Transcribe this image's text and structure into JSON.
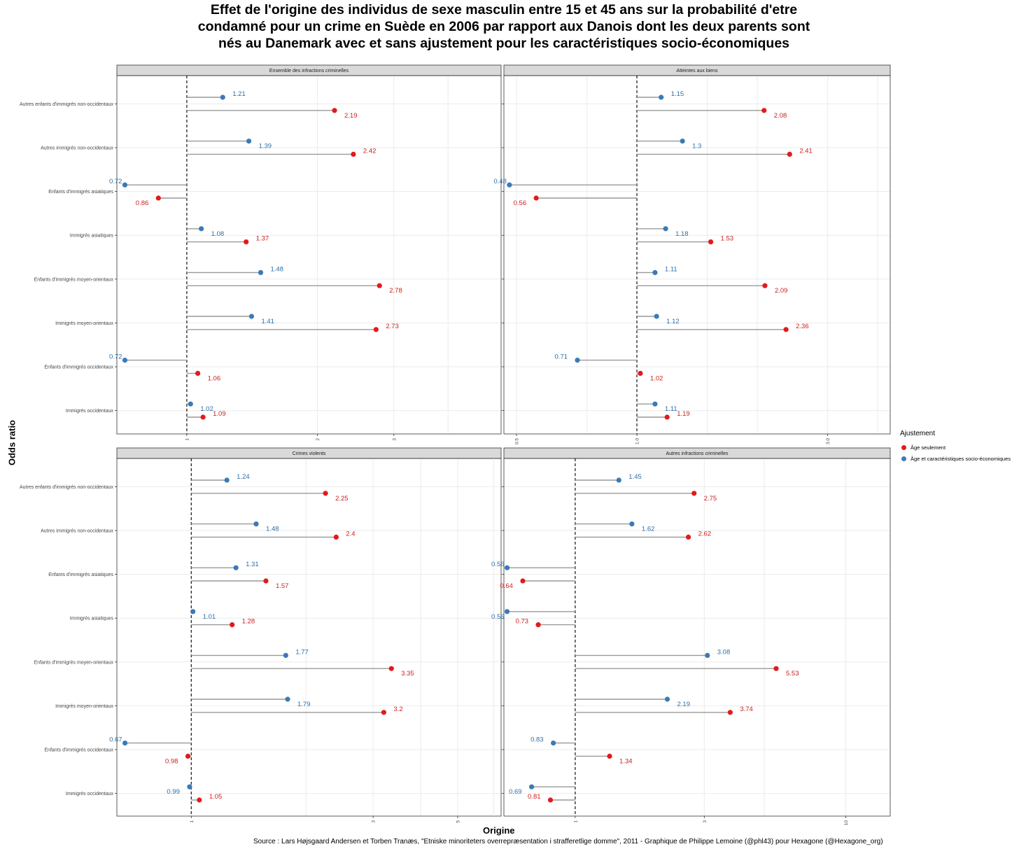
{
  "chart_data": {
    "type": "lollipop",
    "title": "Effet de l'origine des individus de sexe masculin entre 15 et 45 ans sur la probabilité d'etre condamné pour un crime en Suède en 2006 par rapport aux Danois dont les deux parents sont nés au Danemark avec et sans ajustement pour les caractéristiques socio-économiques",
    "xlabel": "Origine",
    "ylabel": "Odds ratio",
    "source": "Source : Lars Højsgaard Andersen et Torben Tranæs, \"Etniske minoriteters overrepræsentation i strafferetlige domme\", 2011 - Graphique de Philippe Lemoine (@phl43) pour Hexagone (@Hexagone_org)",
    "legend": {
      "title": "Ajustement",
      "position": "right",
      "items": [
        {
          "label": "Âge seulement",
          "color": "#e31a1c"
        },
        {
          "label": "Âge et caractéristiques socio-économiques",
          "color": "#3a7ab8"
        }
      ]
    },
    "categories": [
      "Autres enfants d'immigrés non-occidentaux",
      "Autres immigrés non-occidentaux",
      "Enfants d'immigrés asiatiques",
      "Immigrés asiatiques",
      "Enfants d'immigrés moyen-orientaux",
      "Immigrés moyen-orientaux",
      "Enfants d'immigrés occidentaux",
      "Immigrés occidentaux"
    ],
    "panels": [
      {
        "name": "Ensemble des infractions criminelles",
        "scale": "log",
        "xlim": [
          0.69,
          5.3
        ],
        "ticks": [
          {
            "v": 1,
            "l": "1"
          },
          {
            "v": 2,
            "l": "2"
          },
          {
            "v": 3,
            "l": "3"
          }
        ],
        "grid": [
          1,
          2,
          3,
          4
        ],
        "age": [
          2.19,
          2.42,
          0.86,
          1.37,
          2.78,
          2.73,
          1.06,
          1.09
        ],
        "socio": [
          1.21,
          1.39,
          0.72,
          1.08,
          1.48,
          1.41,
          0.72,
          1.02
        ]
      },
      {
        "name": "Atteintes aux biens",
        "scale": "log",
        "xlim": [
          0.465,
          4.3
        ],
        "ticks": [
          {
            "v": 0.5,
            "l": "0.5"
          },
          {
            "v": 1,
            "l": "1.0"
          },
          {
            "v": 3,
            "l": "3.0"
          }
        ],
        "grid": [
          0.5,
          0.75,
          1,
          1.5,
          2,
          3,
          4
        ],
        "age": [
          2.08,
          2.41,
          0.56,
          1.53,
          2.09,
          2.36,
          1.02,
          1.19
        ],
        "socio": [
          1.15,
          1.3,
          0.48,
          1.18,
          1.11,
          1.12,
          0.71,
          1.11
        ]
      },
      {
        "name": "Crimes violents",
        "scale": "log",
        "xlim": [
          0.638,
          6.5
        ],
        "ticks": [
          {
            "v": 1,
            "l": "1"
          },
          {
            "v": 3,
            "l": "3"
          },
          {
            "v": 5,
            "l": "5"
          }
        ],
        "grid": [
          1,
          2,
          3,
          4,
          5
        ],
        "age": [
          2.25,
          2.4,
          1.57,
          1.28,
          3.35,
          3.2,
          0.98,
          1.05
        ],
        "socio": [
          1.24,
          1.48,
          1.31,
          1.01,
          1.77,
          1.79,
          0.67,
          0.99
        ]
      },
      {
        "name": "Autres infractions criminelles",
        "scale": "log",
        "xlim": [
          0.545,
          14.6
        ],
        "ticks": [
          {
            "v": 1,
            "l": "1"
          },
          {
            "v": 3,
            "l": "3"
          },
          {
            "v": 10,
            "l": "10"
          }
        ],
        "grid": [
          0.5,
          1,
          3,
          5,
          10
        ],
        "age": [
          2.75,
          2.62,
          0.64,
          0.73,
          5.53,
          3.74,
          1.34,
          0.81
        ],
        "socio": [
          1.45,
          1.62,
          0.56,
          0.56,
          3.08,
          2.19,
          0.83,
          0.69
        ]
      }
    ]
  }
}
